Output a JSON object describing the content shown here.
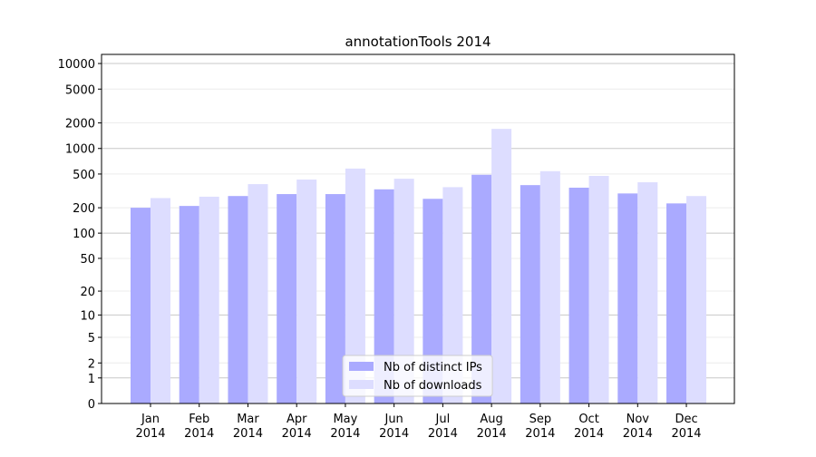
{
  "chart_data": {
    "type": "bar",
    "title": "annotationTools 2014",
    "categories": [
      "Jan\n2014",
      "Feb\n2014",
      "Mar\n2014",
      "Apr\n2014",
      "May\n2014",
      "Jun\n2014",
      "Jul\n2014",
      "Aug\n2014",
      "Sep\n2014",
      "Oct\n2014",
      "Nov\n2014",
      "Dec\n2014"
    ],
    "series": [
      {
        "name": "Nb of distinct IPs",
        "color": "#aaaaff",
        "values": [
          200,
          210,
          275,
          290,
          290,
          330,
          255,
          490,
          370,
          345,
          295,
          225
        ]
      },
      {
        "name": "Nb of downloads",
        "color": "#ddddff",
        "values": [
          260,
          270,
          380,
          430,
          580,
          440,
          350,
          1700,
          540,
          475,
          400,
          275
        ]
      }
    ],
    "yscale": "log1p",
    "ylim": [
      0,
      12800
    ],
    "yticks": [
      0,
      1,
      2,
      5,
      10,
      20,
      50,
      100,
      200,
      500,
      1000,
      2000,
      5000,
      10000
    ],
    "grid": true,
    "legend": "lower center"
  }
}
